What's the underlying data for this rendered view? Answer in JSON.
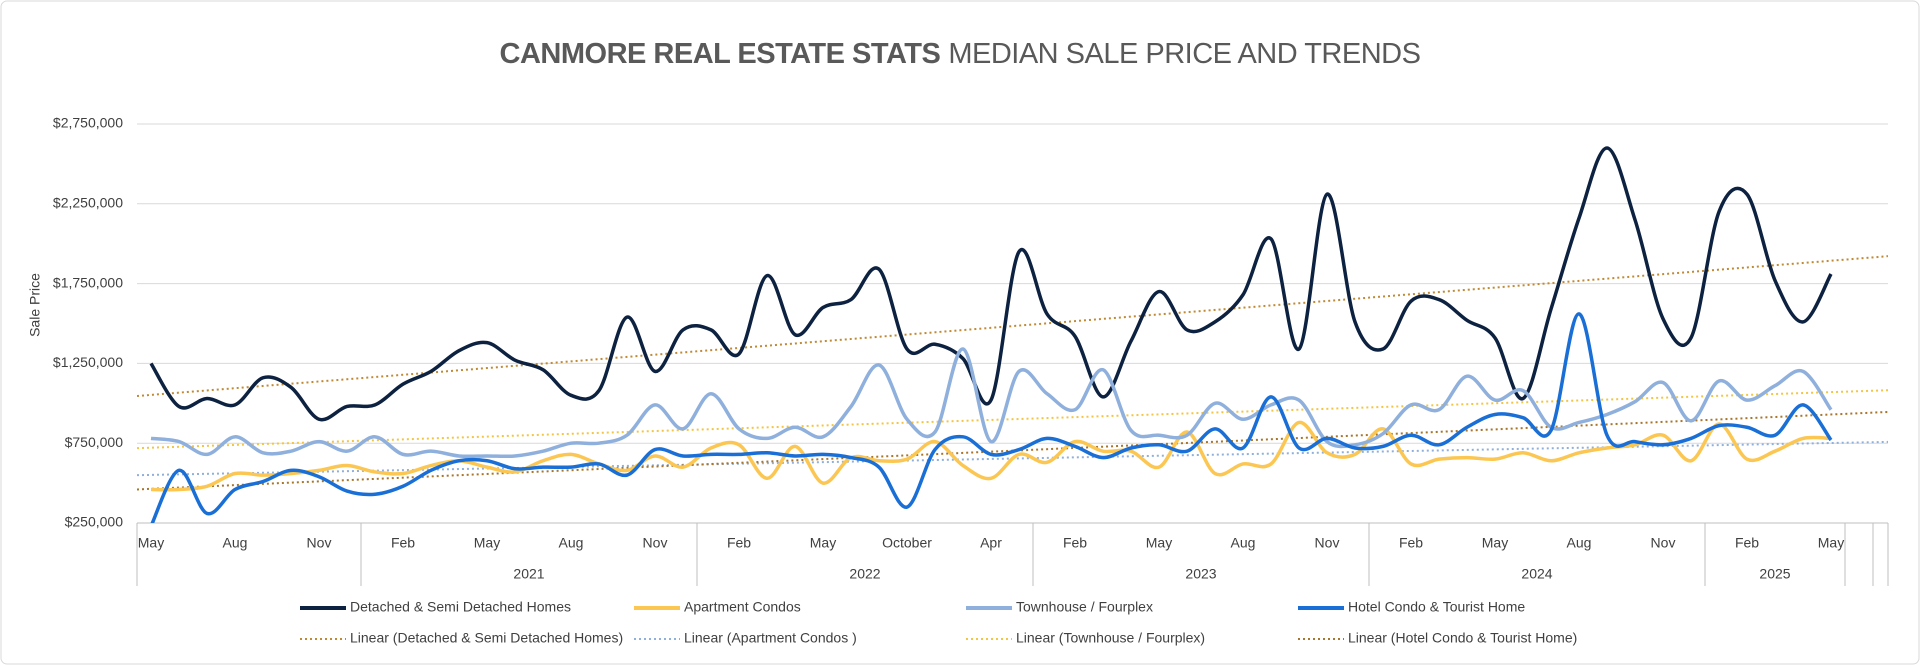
{
  "chart_data": {
    "type": "line",
    "title": "CANMORE REAL ESTATE STATS",
    "subtitle": "MEDIAN SALE PRICE AND TRENDS",
    "y_label": "Sale Price",
    "ylim": [
      250000,
      2750000
    ],
    "yticks": [
      {
        "value": 250000,
        "label": "$250,000"
      },
      {
        "value": 750000,
        "label": "$750,000"
      },
      {
        "value": 1250000,
        "label": "$1,250,000"
      },
      {
        "value": 1750000,
        "label": "$1,750,000"
      },
      {
        "value": 2250000,
        "label": "$2,250,000"
      },
      {
        "value": 2750000,
        "label": "$2,750,000"
      }
    ],
    "grid": true,
    "smooth": true,
    "categories": [
      "May",
      null,
      null,
      "Aug",
      null,
      null,
      "Nov",
      null,
      null,
      "Feb",
      null,
      null,
      "May",
      null,
      null,
      "Aug",
      null,
      null,
      "Nov",
      null,
      null,
      "Feb",
      null,
      null,
      "May",
      null,
      null,
      "October",
      null,
      null,
      "Apr",
      null,
      null,
      "Feb",
      null,
      null,
      "May",
      null,
      null,
      "Aug",
      null,
      null,
      "Nov",
      null,
      null,
      "Feb",
      null,
      null,
      "May",
      null,
      null,
      "Aug",
      null,
      null,
      "Nov",
      null,
      null,
      "Feb",
      null,
      null,
      "May"
    ],
    "x_groups": [
      "2021",
      "2022",
      "2023",
      "2024",
      "2025"
    ],
    "series": [
      {
        "name": "Detached & Semi Detached Homes",
        "color": "#0d2240",
        "values": [
          1250000,
          980000,
          1030000,
          990000,
          1160000,
          1100000,
          900000,
          980000,
          990000,
          1120000,
          1200000,
          1330000,
          1380000,
          1270000,
          1210000,
          1050000,
          1080000,
          1540000,
          1200000,
          1460000,
          1460000,
          1310000,
          1800000,
          1430000,
          1600000,
          1650000,
          1840000,
          1340000,
          1370000,
          1280000,
          1020000,
          1950000,
          1560000,
          1420000,
          1040000,
          1390000,
          1700000,
          1460000,
          1510000,
          1680000,
          2030000,
          1340000,
          2310000,
          1510000,
          1340000,
          1640000,
          1650000,
          1520000,
          1410000,
          1030000,
          1590000,
          2160000,
          2600000,
          2150000,
          1530000,
          1410000,
          2200000,
          2310000,
          1770000,
          1510000,
          1810000
        ],
        "trendline": {
          "name": "Linear (Detached & Semi Detached Homes)",
          "color": "#c08a35"
        }
      },
      {
        "name": "Apartment Condos",
        "color": "#fbc752",
        "values": [
          460000,
          460000,
          480000,
          560000,
          550000,
          560000,
          580000,
          610000,
          570000,
          560000,
          610000,
          640000,
          600000,
          570000,
          640000,
          680000,
          620000,
          580000,
          670000,
          600000,
          720000,
          740000,
          530000,
          730000,
          500000,
          660000,
          640000,
          650000,
          760000,
          610000,
          530000,
          680000,
          630000,
          760000,
          700000,
          700000,
          600000,
          820000,
          560000,
          620000,
          620000,
          880000,
          690000,
          680000,
          840000,
          620000,
          650000,
          660000,
          650000,
          690000,
          640000,
          690000,
          720000,
          740000,
          800000,
          640000,
          870000,
          650000,
          700000,
          780000,
          780000
        ],
        "trendline": {
          "name": "Linear (Apartment Condos )",
          "color": "#8fb0dc"
        }
      },
      {
        "name": "Townhouse / Fourplex",
        "color": "#8fb0dc",
        "values": [
          780000,
          760000,
          680000,
          790000,
          690000,
          700000,
          760000,
          700000,
          790000,
          680000,
          700000,
          670000,
          670000,
          670000,
          700000,
          750000,
          750000,
          800000,
          990000,
          840000,
          1060000,
          840000,
          780000,
          850000,
          790000,
          980000,
          1240000,
          900000,
          820000,
          1340000,
          760000,
          1200000,
          1060000,
          960000,
          1210000,
          830000,
          800000,
          800000,
          1000000,
          900000,
          990000,
          1020000,
          760000,
          740000,
          810000,
          990000,
          960000,
          1170000,
          1020000,
          1080000,
          850000,
          880000,
          930000,
          1010000,
          1130000,
          890000,
          1140000,
          1020000,
          1110000,
          1200000,
          960000
        ],
        "trendline": {
          "name": "Linear (Townhouse / Fourplex)",
          "color": "#f4c543"
        }
      },
      {
        "name": "Hotel Condo & Tourist Home",
        "color": "#1a6fd6",
        "values": [
          230000,
          580000,
          310000,
          460000,
          510000,
          580000,
          540000,
          450000,
          430000,
          480000,
          580000,
          640000,
          640000,
          590000,
          600000,
          600000,
          620000,
          550000,
          710000,
          670000,
          680000,
          680000,
          690000,
          670000,
          680000,
          660000,
          600000,
          350000,
          710000,
          790000,
          680000,
          710000,
          780000,
          730000,
          660000,
          720000,
          740000,
          700000,
          840000,
          720000,
          1040000,
          720000,
          780000,
          720000,
          730000,
          800000,
          740000,
          850000,
          930000,
          910000,
          830000,
          1560000,
          800000,
          760000,
          740000,
          780000,
          860000,
          850000,
          800000,
          990000,
          770000
        ],
        "trendline": {
          "name": "Linear (Hotel Condo & Tourist Home)",
          "color": "#a8752a"
        }
      }
    ]
  }
}
